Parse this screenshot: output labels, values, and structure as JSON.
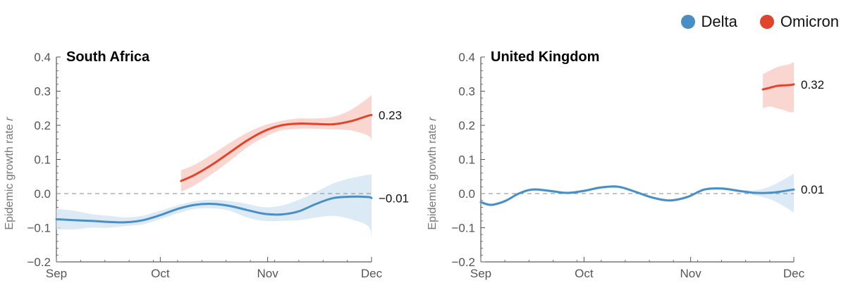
{
  "legend": {
    "delta": "Delta",
    "omicron": "Omicron"
  },
  "colors": {
    "delta": "#4a8fc4",
    "delta_band": "#d6e6f3",
    "omicron": "#e0452b",
    "omicron_band": "#f9cfc9"
  },
  "chart_data": [
    {
      "type": "line",
      "title": "South Africa",
      "ylabel": "Epidemic growth rate r",
      "ylim": [
        -0.2,
        0.4
      ],
      "yticks": [
        "0.4",
        "0.3",
        "0.2",
        "0.1",
        "0.0",
        "−0.1",
        "−0.2"
      ],
      "xticks": [
        "Sep",
        "Oct",
        "Nov",
        "Dec"
      ],
      "x_unit": "days since Sep 1",
      "grid": false,
      "reference_line": 0,
      "end_labels": {
        "omicron": "0.23",
        "delta": "−0.01"
      },
      "series": [
        {
          "name": "Delta",
          "x": [
            0,
            5,
            10,
            15,
            20,
            25,
            30,
            35,
            40,
            45,
            50,
            55,
            60,
            65,
            70,
            75,
            80,
            85,
            90,
            91
          ],
          "y": [
            -0.075,
            -0.078,
            -0.08,
            -0.083,
            -0.084,
            -0.078,
            -0.063,
            -0.045,
            -0.033,
            -0.03,
            -0.036,
            -0.048,
            -0.059,
            -0.061,
            -0.052,
            -0.03,
            -0.013,
            -0.009,
            -0.01,
            -0.013
          ],
          "lower": [
            -0.105,
            -0.105,
            -0.1,
            -0.1,
            -0.095,
            -0.09,
            -0.075,
            -0.058,
            -0.045,
            -0.043,
            -0.05,
            -0.07,
            -0.08,
            -0.08,
            -0.078,
            -0.07,
            -0.065,
            -0.075,
            -0.095,
            -0.13
          ],
          "upper": [
            -0.045,
            -0.05,
            -0.06,
            -0.065,
            -0.07,
            -0.065,
            -0.05,
            -0.035,
            -0.022,
            -0.018,
            -0.022,
            -0.03,
            -0.04,
            -0.035,
            -0.018,
            0.005,
            0.03,
            0.045,
            0.055,
            0.055
          ]
        },
        {
          "name": "Omicron",
          "x": [
            36,
            40,
            45,
            50,
            55,
            60,
            65,
            70,
            75,
            80,
            85,
            90,
            91
          ],
          "y": [
            0.037,
            0.055,
            0.085,
            0.12,
            0.155,
            0.183,
            0.2,
            0.205,
            0.204,
            0.203,
            0.212,
            0.228,
            0.23
          ],
          "lower": [
            0.005,
            0.025,
            0.058,
            0.095,
            0.135,
            0.165,
            0.185,
            0.19,
            0.19,
            0.188,
            0.185,
            0.17,
            0.155
          ],
          "upper": [
            0.068,
            0.085,
            0.115,
            0.148,
            0.178,
            0.2,
            0.213,
            0.22,
            0.22,
            0.225,
            0.245,
            0.28,
            0.29
          ]
        }
      ]
    },
    {
      "type": "line",
      "title": "United Kingdom",
      "ylabel": "Epidemic growth rate r",
      "ylim": [
        -0.2,
        0.4
      ],
      "yticks": [
        "0.4",
        "0.3",
        "0.2",
        "0.1",
        "0.0",
        "−0.1",
        "−0.2"
      ],
      "xticks": [
        "Sep",
        "Oct",
        "Nov",
        "Dec"
      ],
      "x_unit": "days since Sep 1",
      "grid": false,
      "reference_line": 0,
      "end_labels": {
        "omicron": "0.32",
        "delta": "0.01"
      },
      "series": [
        {
          "name": "Delta",
          "x": [
            0,
            3,
            7,
            11,
            15,
            20,
            25,
            30,
            35,
            40,
            45,
            50,
            55,
            60,
            65,
            70,
            75,
            80,
            85,
            91
          ],
          "y": [
            -0.025,
            -0.033,
            -0.022,
            0.0,
            0.012,
            0.008,
            0.002,
            0.008,
            0.018,
            0.02,
            0.005,
            -0.012,
            -0.02,
            -0.01,
            0.012,
            0.015,
            0.008,
            0.002,
            0.003,
            0.012
          ],
          "lower": [
            -0.03,
            -0.037,
            -0.026,
            -0.004,
            0.008,
            0.004,
            -0.002,
            0.004,
            0.014,
            0.016,
            0.001,
            -0.016,
            -0.024,
            -0.014,
            0.008,
            0.011,
            0.004,
            -0.006,
            -0.02,
            -0.055
          ],
          "upper": [
            -0.02,
            -0.029,
            -0.018,
            0.004,
            0.016,
            0.012,
            0.006,
            0.012,
            0.022,
            0.024,
            0.009,
            -0.008,
            -0.016,
            -0.006,
            0.016,
            0.019,
            0.012,
            0.01,
            0.025,
            0.058
          ]
        },
        {
          "name": "Omicron",
          "x": [
            82,
            84,
            86,
            88,
            90,
            91
          ],
          "y": [
            0.305,
            0.31,
            0.315,
            0.317,
            0.318,
            0.32
          ],
          "lower": [
            0.25,
            0.255,
            0.25,
            0.245,
            0.238,
            0.24
          ],
          "upper": [
            0.35,
            0.36,
            0.37,
            0.375,
            0.38,
            0.385
          ]
        }
      ]
    }
  ]
}
